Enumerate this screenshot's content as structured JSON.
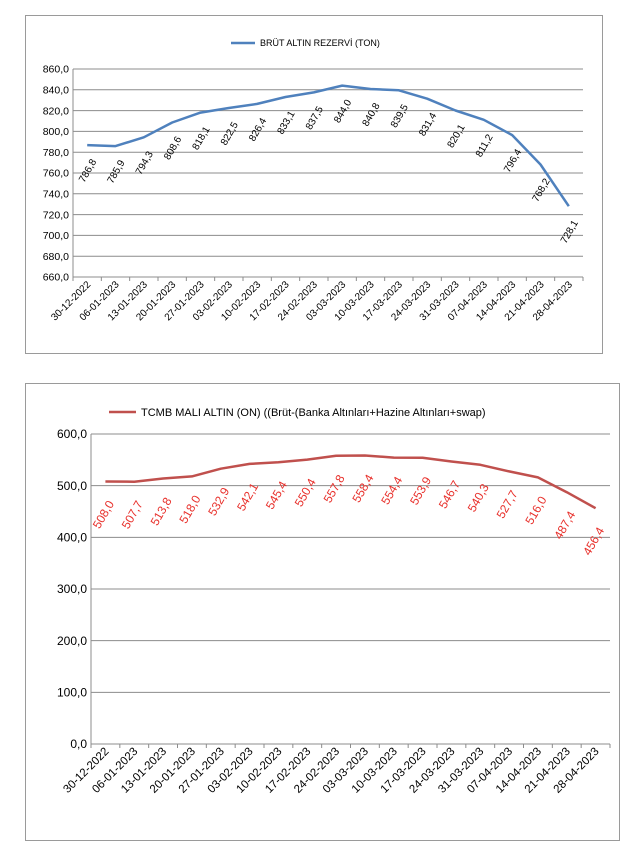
{
  "chart_data": [
    {
      "type": "line",
      "categories": [
        "30-12-2022",
        "06-01-2023",
        "13-01-2023",
        "20-01-2023",
        "27-01-2023",
        "03-02-2023",
        "10-02-2023",
        "17-02-2023",
        "24-02-2023",
        "03-03-2023",
        "10-03-2023",
        "17-03-2023",
        "24-03-2023",
        "31-03-2023",
        "07-04-2023",
        "14-04-2023",
        "21-04-2023",
        "28-04-2023"
      ],
      "series": [
        {
          "name": "BRÜT ALTIN REZERVİ  (TON)",
          "values": [
            786.8,
            785.9,
            794.3,
            808.6,
            818.1,
            822.5,
            826.4,
            833.1,
            837.5,
            844.0,
            840.8,
            839.5,
            831.4,
            820.1,
            811.2,
            796.4,
            768.2,
            728.1
          ],
          "labels": [
            "786,8",
            "785,9",
            "794,3",
            "808,6",
            "818,1",
            "822,5",
            "826,4",
            "833,1",
            "837,5",
            "844,0",
            "840,8",
            "839,5",
            "831,4",
            "820,1",
            "811,2",
            "796,4",
            "768,2",
            "728,1"
          ],
          "color": "#4f81bd"
        }
      ],
      "ylim": [
        660,
        860
      ],
      "yticks": [
        "660,0",
        "680,0",
        "700,0",
        "720,0",
        "740,0",
        "760,0",
        "780,0",
        "800,0",
        "820,0",
        "840,0",
        "860,0"
      ],
      "grid": true,
      "legend": "top",
      "label_color": "#000000"
    },
    {
      "type": "line",
      "categories": [
        "30-12-2022",
        "06-01-2023",
        "13-01-2023",
        "20-01-2023",
        "27-01-2023",
        "03-02-2023",
        "10-02-2023",
        "17-02-2023",
        "24-02-2023",
        "03-03-2023",
        "10-03-2023",
        "17-03-2023",
        "24-03-2023",
        "31-03-2023",
        "07-04-2023",
        "14-04-2023",
        "21-04-2023",
        "28-04-2023"
      ],
      "series": [
        {
          "name": "TCMB MALI ALTIN (ON) ((Brüt-(Banka Altınları+Hazine Altınları+swap)",
          "values": [
            508.0,
            507.7,
            513.8,
            518.0,
            532.9,
            542.1,
            545.4,
            550.4,
            557.8,
            558.4,
            554.4,
            553.9,
            546.7,
            540.3,
            527.7,
            516.0,
            487.4,
            456.4
          ],
          "labels": [
            "508,0",
            "507,7",
            "513,8",
            "518,0",
            "532,9",
            "542,1",
            "545,4",
            "550,4",
            "557,8",
            "558,4",
            "554,4",
            "553,9",
            "546,7",
            "540,3",
            "527,7",
            "516,0",
            "487,4",
            "456,4"
          ],
          "color": "#c0504d"
        }
      ],
      "ylim": [
        0,
        600
      ],
      "yticks": [
        "0,0",
        "100,0",
        "200,0",
        "300,0",
        "400,0",
        "500,0",
        "600,0"
      ],
      "grid": true,
      "legend": "top",
      "label_color": "#e8312c"
    }
  ]
}
